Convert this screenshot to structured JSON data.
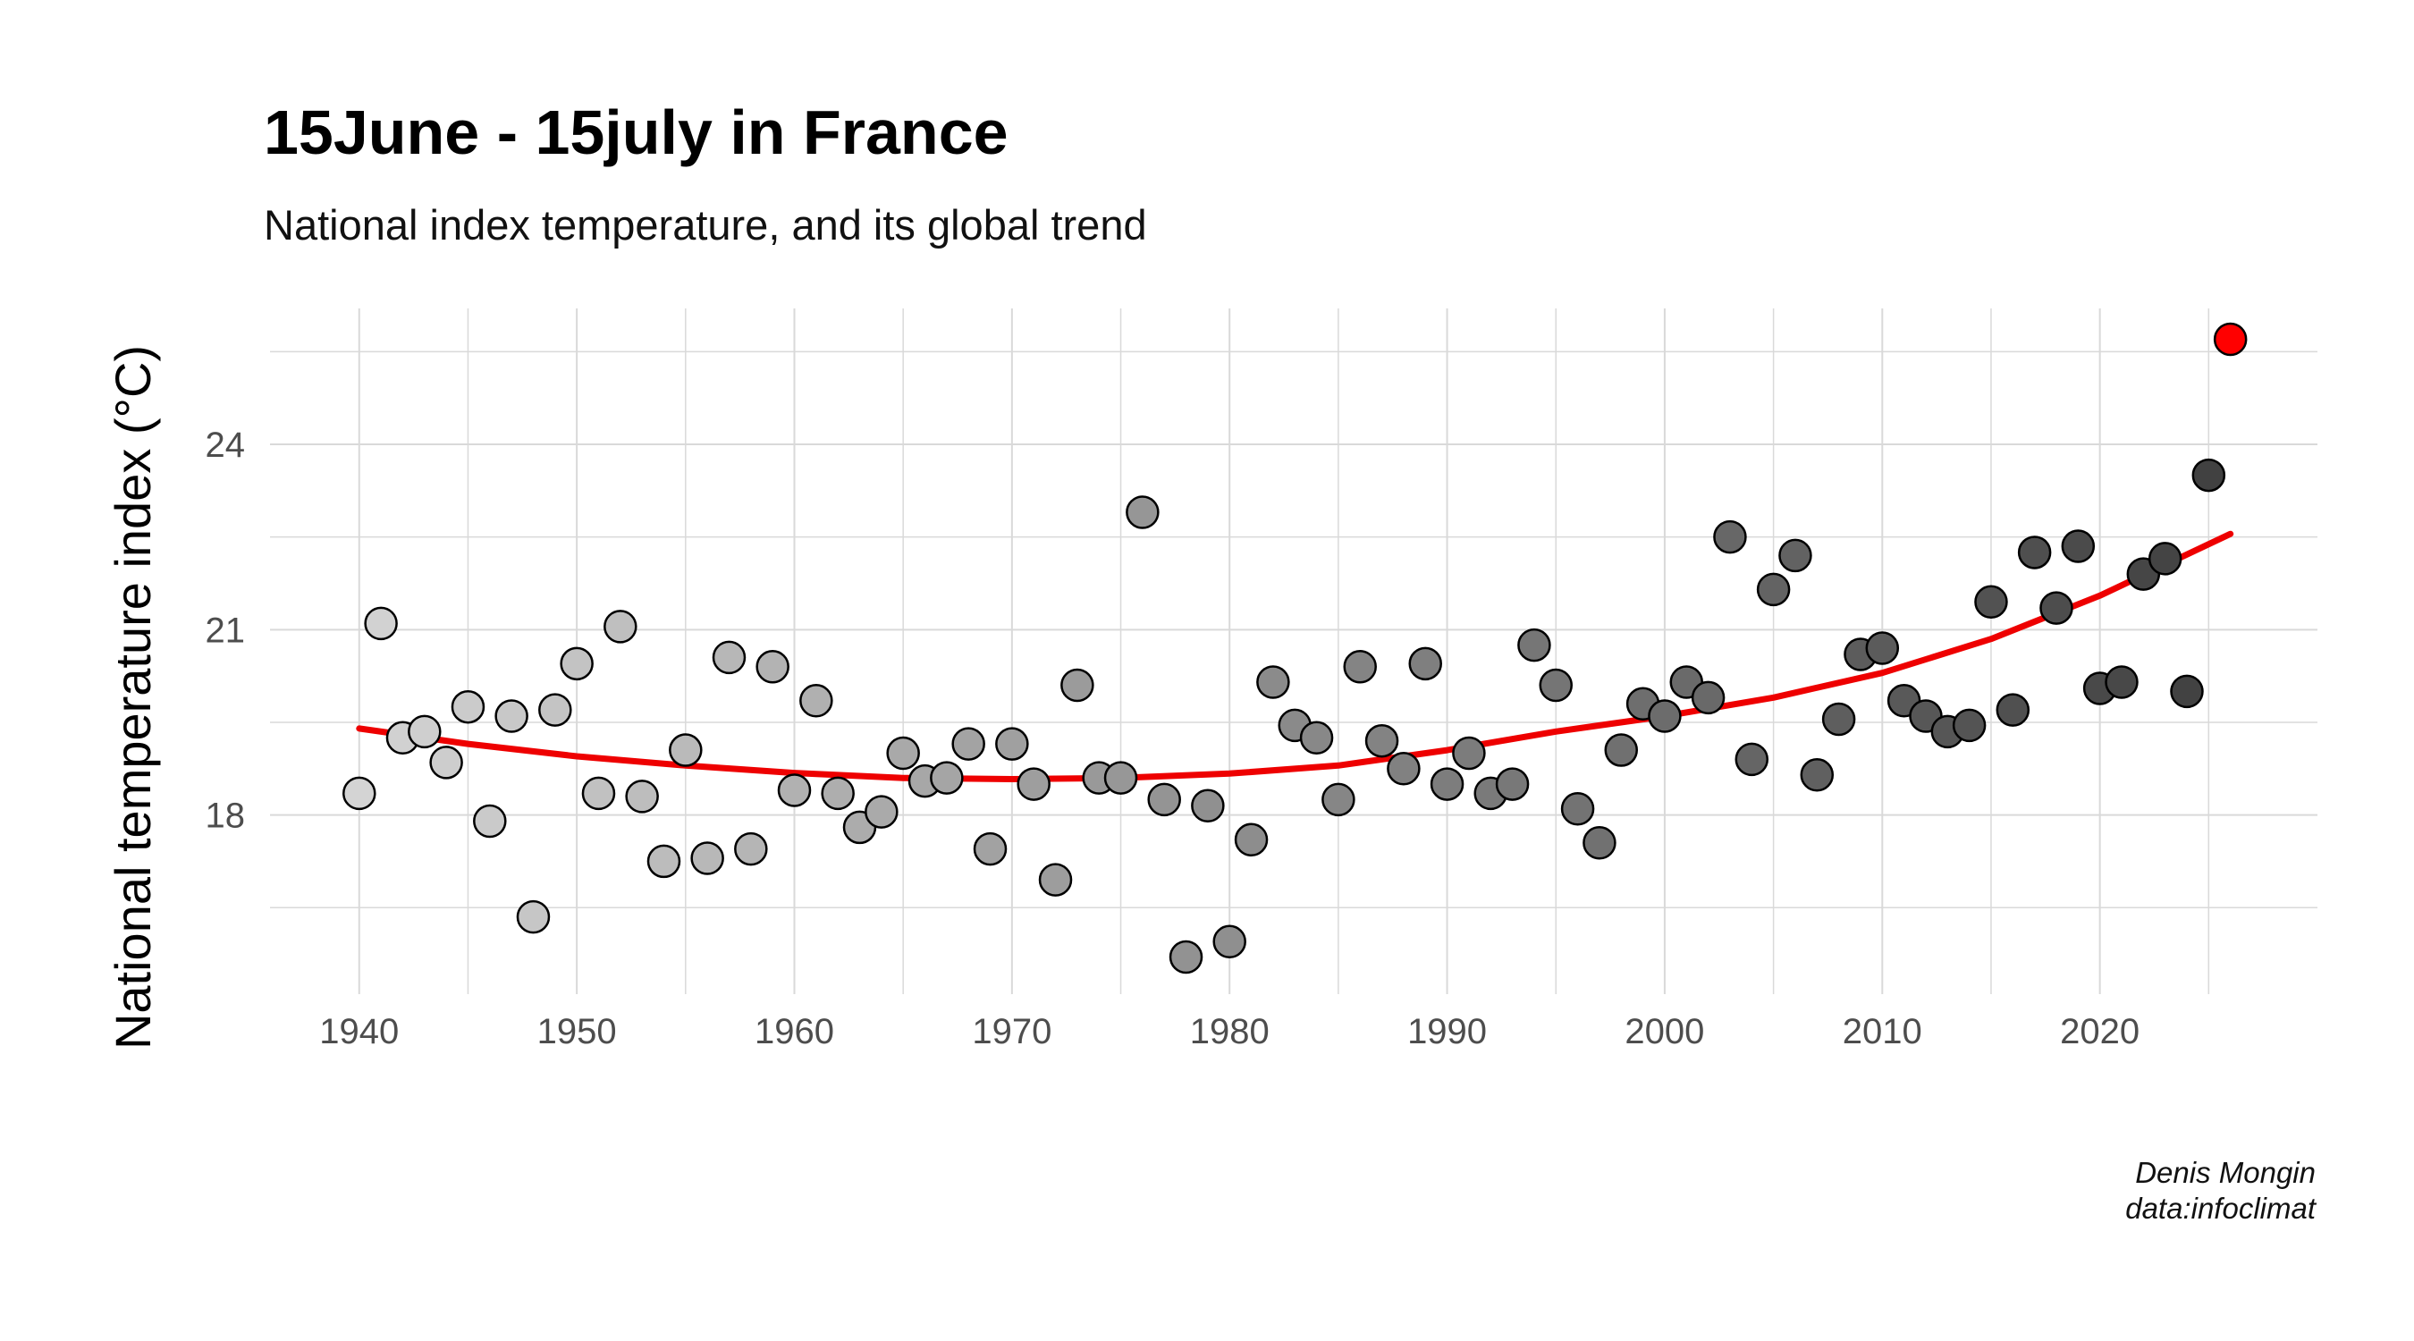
{
  "title": "15June - 15july in France",
  "subtitle": "National index temperature, and its global trend",
  "caption": {
    "author": "Denis Mongin",
    "source": "data:infoclimat"
  },
  "chart_data": {
    "type": "scatter",
    "title": "15June - 15july in France",
    "subtitle": "National index temperature, and its global trend",
    "xlabel": "",
    "ylabel": "National temperature index (°C)",
    "xlim": [
      1935.9,
      2030
    ],
    "ylim": [
      15.1,
      26.2
    ],
    "x_ticks": [
      1940,
      1950,
      1960,
      1970,
      1980,
      1990,
      2000,
      2010,
      2020
    ],
    "y_ticks": [
      18,
      21,
      24
    ],
    "grid": true,
    "legend": "none",
    "colors": {
      "point_early": "#d4d4d4",
      "point_late": "#3f3f3f",
      "point_border": "#000000",
      "highlight": "#ff0000",
      "trend": "#ee0000",
      "grid": "#d9d9d9"
    },
    "series": [
      {
        "x": [
          1940,
          1941,
          1942,
          1943,
          1944,
          1945,
          1946,
          1947,
          1948,
          1949,
          1950,
          1951,
          1952,
          1953,
          1954,
          1955,
          1956,
          1957,
          1958,
          1959,
          1960,
          1961,
          1962,
          1963,
          1964,
          1965,
          1966,
          1967,
          1968,
          1969,
          1970,
          1971,
          1972,
          1973,
          1974,
          1975,
          1976,
          1977,
          1978,
          1979,
          1980,
          1981,
          1982,
          1983,
          1984,
          1985,
          1986,
          1987,
          1988,
          1989,
          1990,
          1991,
          1992,
          1993,
          1994,
          1995,
          1996,
          1997,
          1998,
          1999,
          2000,
          2001,
          2002,
          2003,
          2004,
          2005,
          2006,
          2007,
          2008,
          2009,
          2010,
          2011,
          2012,
          2013,
          2014,
          2015,
          2016,
          2017,
          2018,
          2019,
          2020,
          2021,
          2022,
          2023,
          2024,
          2025,
          2026
        ],
        "y": [
          18.35,
          21.1,
          19.25,
          19.35,
          18.85,
          19.75,
          17.9,
          19.6,
          16.35,
          19.7,
          20.45,
          18.35,
          21.05,
          18.3,
          17.25,
          19.05,
          17.3,
          20.55,
          17.45,
          20.4,
          18.4,
          19.85,
          18.35,
          17.8,
          18.05,
          19.0,
          18.55,
          18.6,
          19.15,
          17.45,
          19.15,
          18.5,
          16.95,
          20.1,
          18.6,
          18.6,
          22.9,
          18.25,
          15.7,
          18.15,
          15.95,
          17.6,
          20.15,
          19.45,
          19.25,
          18.25,
          20.4,
          19.2,
          18.75,
          20.45,
          18.5,
          19.0,
          18.35,
          18.5,
          20.75,
          20.1,
          18.1,
          17.55,
          19.05,
          19.8,
          19.6,
          20.15,
          19.9,
          22.5,
          18.9,
          21.65,
          22.2,
          18.65,
          19.55,
          20.6,
          20.7,
          19.85,
          19.6,
          19.35,
          19.45,
          21.45,
          19.7,
          22.25,
          21.35,
          22.35,
          20.05,
          20.15,
          21.9,
          22.15,
          20.0,
          23.5,
          25.7
        ]
      }
    ],
    "highlight_point": {
      "x": 2026,
      "y": 25.7
    },
    "trend": {
      "x": [
        1940,
        1945,
        1950,
        1955,
        1960,
        1965,
        1970,
        1975,
        1980,
        1985,
        1990,
        1995,
        2000,
        2005,
        2010,
        2015,
        2020,
        2026
      ],
      "y": [
        19.4,
        19.15,
        18.95,
        18.8,
        18.68,
        18.6,
        18.58,
        18.6,
        18.67,
        18.8,
        19.05,
        19.35,
        19.6,
        19.9,
        20.3,
        20.85,
        21.55,
        22.55
      ]
    }
  }
}
